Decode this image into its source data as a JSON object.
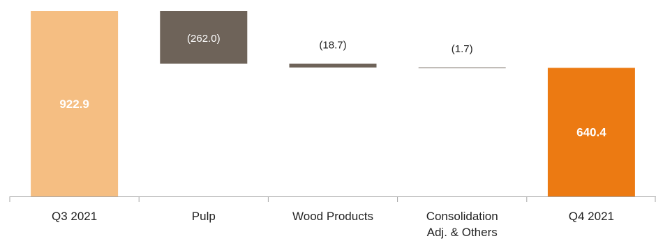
{
  "chart_data": {
    "type": "bar",
    "subtype": "waterfall",
    "title": "",
    "xlabel": "",
    "ylabel": "",
    "categories": [
      "Q3 2021",
      "Pulp",
      "Wood Products",
      "Consolidation Adj. & Others",
      "Q4 2021"
    ],
    "category_label_lines": [
      [
        "Q3 2021"
      ],
      [
        "Pulp"
      ],
      [
        "Wood Products"
      ],
      [
        "Consolidation",
        "Adj. & Others"
      ],
      [
        "Q4 2021"
      ]
    ],
    "values": [
      922.9,
      -262.0,
      -18.7,
      -1.7,
      640.4
    ],
    "kinds": [
      "total",
      "delta",
      "delta",
      "delta",
      "total"
    ],
    "value_labels": [
      "922.9",
      "(262.0)",
      "(18.7)",
      "(1.7)",
      "640.4"
    ],
    "ylim": [
      0,
      960
    ],
    "grid": false,
    "legend": "none",
    "colors": {
      "start_total": "#F5BE82",
      "delta": "#6E6359",
      "end_total": "#EC7A12",
      "axis": "#A6A6A6",
      "label_on_dark": "#ffffff",
      "label_outside": "#222222"
    }
  }
}
